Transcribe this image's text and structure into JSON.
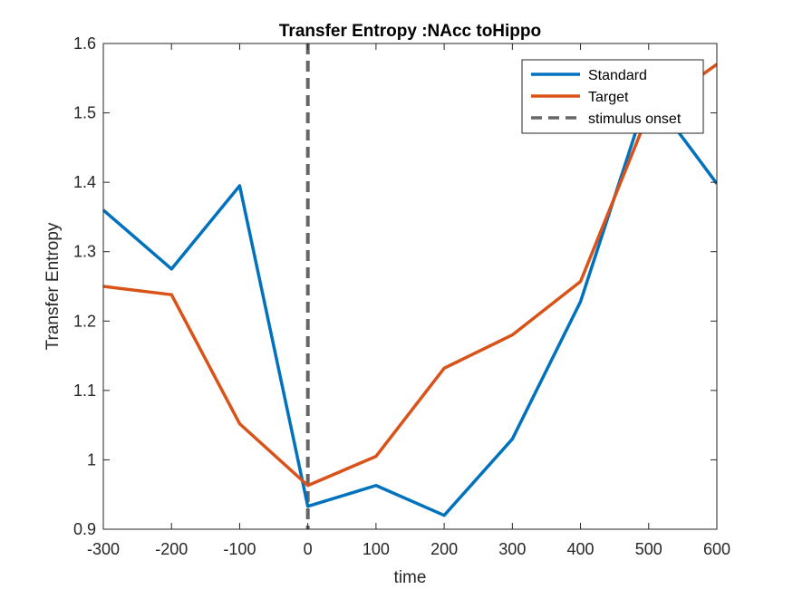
{
  "chart_data": {
    "type": "line",
    "title": "Transfer Entropy :NAcc toHippo",
    "xlabel": "time",
    "ylabel": "Transfer Entropy",
    "xlim": [
      -300,
      600
    ],
    "ylim": [
      0.9,
      1.6
    ],
    "xticks": [
      "-300",
      "-200",
      "-100",
      "0",
      "100",
      "200",
      "300",
      "400",
      "500",
      "600"
    ],
    "yticks": [
      "0.9",
      "1",
      "1.1",
      "1.2",
      "1.3",
      "1.4",
      "1.5",
      "1.6"
    ],
    "grid": false,
    "legend_position": "top-right",
    "x": [
      -300,
      -200,
      -100,
      0,
      100,
      200,
      300,
      400,
      500,
      600
    ],
    "series": [
      {
        "name": "Standard",
        "color": "#0072BD",
        "values": [
          1.36,
          1.275,
          1.395,
          0.933,
          0.963,
          0.92,
          1.03,
          1.228,
          1.53,
          1.398
        ]
      },
      {
        "name": "Target",
        "color": "#D95319",
        "values": [
          1.25,
          1.238,
          1.052,
          0.963,
          1.005,
          1.132,
          1.18,
          1.257,
          1.5,
          1.57
        ]
      }
    ],
    "vline": {
      "name": "stimulus onset",
      "x": 0,
      "color": "#666666",
      "style": "dashed"
    }
  }
}
